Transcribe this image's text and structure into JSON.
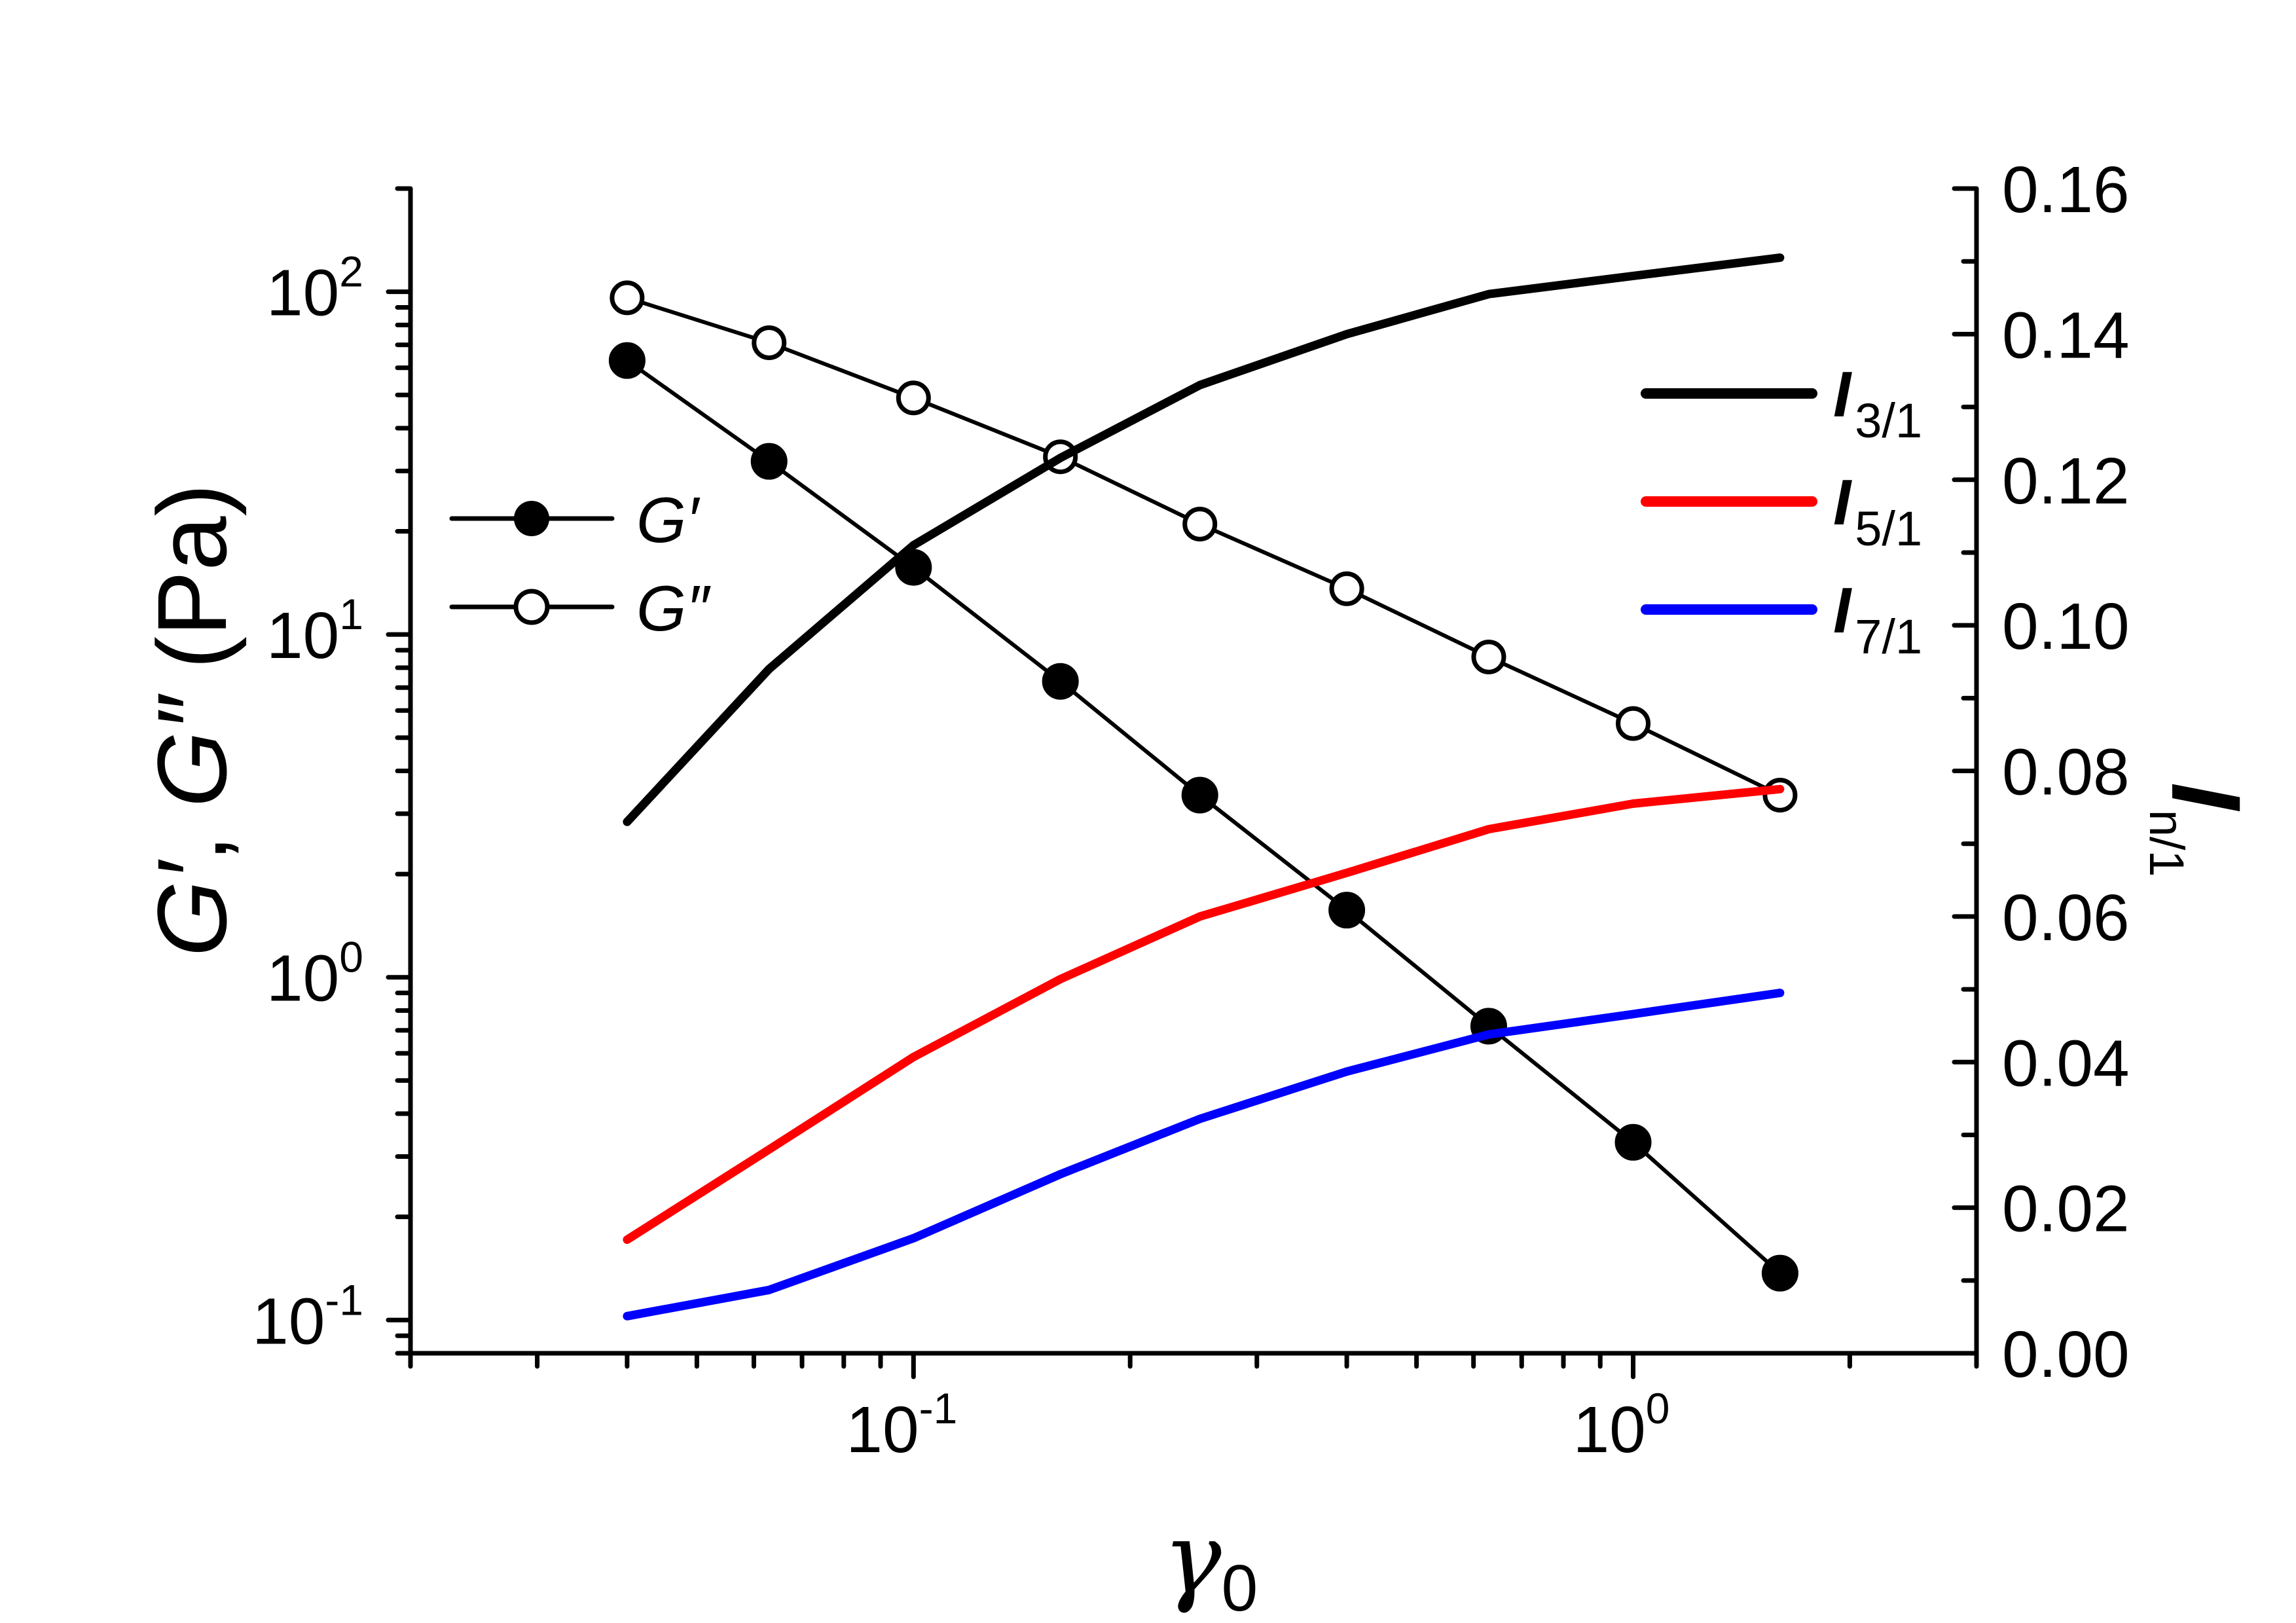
{
  "chart_data": {
    "type": "line",
    "title": "",
    "xlabel": "γ",
    "xlabel_subscript": "0",
    "xscale": "log",
    "xlim": [
      0.02,
      3.0
    ],
    "x_ticks": [
      {
        "value": 0.1,
        "base": "10",
        "exp": "-1"
      },
      {
        "value": 1.0,
        "base": "10",
        "exp": "0"
      }
    ],
    "ylabel_left": {
      "g1": "G′",
      "sep": ", ",
      "g2": "G″",
      "unit": " (Pa)"
    },
    "yscale_left": "log",
    "ylim_left": [
      0.08,
      200
    ],
    "y_ticks_left": [
      {
        "value": 0.1,
        "base": "10",
        "exp": "-1"
      },
      {
        "value": 1,
        "base": "10",
        "exp": "0"
      },
      {
        "value": 10,
        "base": "10",
        "exp": "1"
      },
      {
        "value": 100,
        "base": "10",
        "exp": "2"
      }
    ],
    "ylabel_right": {
      "main": "I",
      "sub": "n/1"
    },
    "yscale_right": "linear",
    "ylim_right": [
      0.0,
      0.16
    ],
    "y_ticks_right": [
      "0.00",
      "0.02",
      "0.04",
      "0.06",
      "0.08",
      "0.10",
      "0.12",
      "0.14",
      "0.16"
    ],
    "grid": false,
    "x": [
      0.04,
      0.063,
      0.1,
      0.16,
      0.25,
      0.4,
      0.63,
      1.0,
      1.6
    ],
    "series": [
      {
        "name": "G′",
        "axis": "left",
        "marker": "filled-circle",
        "color": "#000000",
        "values": [
          63,
          32,
          15.7,
          7.3,
          3.4,
          1.57,
          0.72,
          0.33,
          0.137
        ]
      },
      {
        "name": "G″",
        "axis": "left",
        "marker": "open-circle",
        "color": "#000000",
        "values": [
          96,
          71,
          49,
          33,
          21,
          13.6,
          8.6,
          5.5,
          3.4
        ]
      },
      {
        "name": "I",
        "sub": "3/1",
        "axis": "right",
        "marker": "none",
        "color": "#000000",
        "values": [
          0.073,
          0.094,
          0.111,
          0.123,
          0.133,
          0.14,
          0.1455,
          0.148,
          0.1505
        ]
      },
      {
        "name": "I",
        "sub": "5/1",
        "axis": "right",
        "marker": "none",
        "color": "#ff0000",
        "values": [
          0.0156,
          0.028,
          0.0407,
          0.0514,
          0.06,
          0.066,
          0.072,
          0.0755,
          0.0775
        ]
      },
      {
        "name": "I",
        "sub": "7/1",
        "axis": "right",
        "marker": "none",
        "color": "#0000ff",
        "values": [
          0.0051,
          0.0087,
          0.0158,
          0.0246,
          0.0322,
          0.0387,
          0.0438,
          0.0466,
          0.0495
        ]
      }
    ],
    "legends": [
      {
        "placement": "left-middle",
        "entries": [
          "G′",
          "G″"
        ]
      },
      {
        "placement": "top-right",
        "entries": [
          "I3/1",
          "I5/1",
          "I7/1"
        ]
      }
    ]
  }
}
